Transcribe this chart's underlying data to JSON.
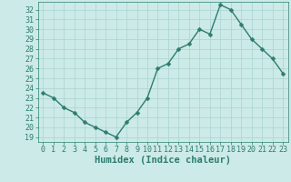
{
  "x": [
    0,
    1,
    2,
    3,
    4,
    5,
    6,
    7,
    8,
    9,
    10,
    11,
    12,
    13,
    14,
    15,
    16,
    17,
    18,
    19,
    20,
    21,
    22,
    23
  ],
  "y": [
    23.5,
    23,
    22,
    21.5,
    20.5,
    20,
    19.5,
    19,
    20.5,
    21.5,
    23,
    26,
    26.5,
    28,
    28.5,
    30,
    29.5,
    32.5,
    32,
    30.5,
    29,
    28,
    27,
    25.5
  ],
  "line_color": "#2d7d6f",
  "marker": "D",
  "marker_size": 2.5,
  "bg_color": "#cceae7",
  "grid_color": "#aad4d0",
  "tick_color": "#2d7d6f",
  "xlabel": "Humidex (Indice chaleur)",
  "xlabel_fontsize": 7.5,
  "xlim": [
    -0.5,
    23.5
  ],
  "ylim": [
    18.5,
    32.8
  ],
  "yticks": [
    19,
    20,
    21,
    22,
    23,
    24,
    25,
    26,
    27,
    28,
    29,
    30,
    31,
    32
  ],
  "xticks": [
    0,
    1,
    2,
    3,
    4,
    5,
    6,
    7,
    8,
    9,
    10,
    11,
    12,
    13,
    14,
    15,
    16,
    17,
    18,
    19,
    20,
    21,
    22,
    23
  ],
  "tick_fontsize": 6,
  "line_width": 1.0
}
